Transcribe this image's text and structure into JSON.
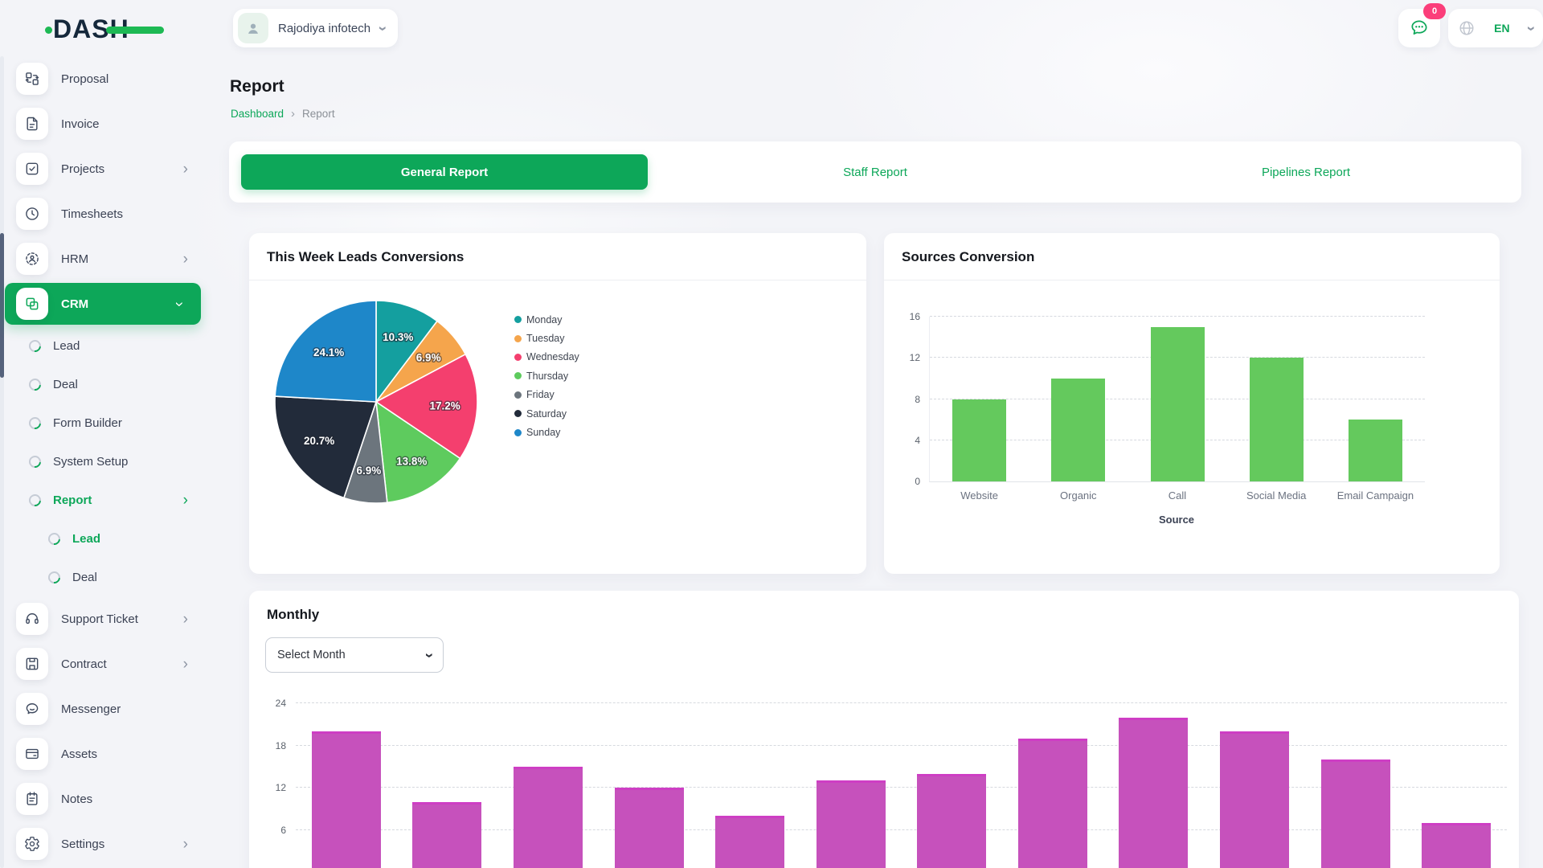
{
  "brand": {
    "name": "DASH"
  },
  "header": {
    "workspace": "Rajodiya infotech",
    "chat_badge": "0",
    "language": "EN"
  },
  "page": {
    "title": "Report",
    "breadcrumb": {
      "root": "Dashboard",
      "current": "Report"
    }
  },
  "tabs": [
    {
      "label": "General Report",
      "active": true
    },
    {
      "label": "Staff Report",
      "active": false
    },
    {
      "label": "Pipelines Report",
      "active": false
    }
  ],
  "sidebar": {
    "items": [
      {
        "label": "Proposal"
      },
      {
        "label": "Invoice"
      },
      {
        "label": "Projects",
        "expandable": true
      },
      {
        "label": "Timesheets"
      },
      {
        "label": "HRM",
        "expandable": true
      },
      {
        "label": "CRM",
        "active": true,
        "expanded": true
      },
      {
        "label": "Lead",
        "level": 1
      },
      {
        "label": "Deal",
        "level": 1
      },
      {
        "label": "Form Builder",
        "level": 1
      },
      {
        "label": "System Setup",
        "level": 1
      },
      {
        "label": "Report",
        "level": 1,
        "active": true,
        "expandable": true
      },
      {
        "label": "Lead",
        "level": 2,
        "active": true
      },
      {
        "label": "Deal",
        "level": 2
      },
      {
        "label": "Support Ticket",
        "expandable": true
      },
      {
        "label": "Contract",
        "expandable": true
      },
      {
        "label": "Messenger"
      },
      {
        "label": "Assets"
      },
      {
        "label": "Notes"
      },
      {
        "label": "Settings",
        "expandable": true
      }
    ]
  },
  "controls": {
    "select_month": "Select Month"
  },
  "colors": {
    "accent_green": "#0da759",
    "badge_pink": "#fb3e7a",
    "logo_navy": "#15283b",
    "logo_green": "#1db954"
  },
  "chart_data": [
    {
      "type": "pie",
      "title": "This Week Leads Conversions",
      "categories": [
        "Monday",
        "Tuesday",
        "Wednesday",
        "Thursday",
        "Friday",
        "Saturday",
        "Sunday"
      ],
      "values": [
        10.3,
        6.9,
        17.2,
        13.8,
        6.9,
        20.7,
        24.1
      ],
      "labels": [
        "10.3%",
        "6.9%",
        "17.2%",
        "13.8%",
        "6.9%",
        "20.7%",
        "24.1%"
      ],
      "colors": [
        "#149f9f",
        "#f5a54c",
        "#f43f6e",
        "#5ecb5e",
        "#6c757d",
        "#222b3a",
        "#1e87c9"
      ],
      "legend_position": "right"
    },
    {
      "type": "bar",
      "title": "Sources Conversion",
      "categories": [
        "Website",
        "Organic",
        "Call",
        "Social Media",
        "Email Campaign"
      ],
      "values": [
        8,
        10,
        15,
        12,
        6
      ],
      "xlabel": "Source",
      "ylim": [
        0,
        16
      ],
      "yticks": [
        0,
        4,
        8,
        12,
        16
      ],
      "color": "#64c95d",
      "grid": "dashed"
    },
    {
      "type": "bar",
      "title": "Monthly",
      "categories": [
        "",
        "",
        "",
        "",
        "",
        "",
        "",
        "",
        "",
        "",
        "",
        ""
      ],
      "values": [
        20,
        10,
        15,
        12,
        8,
        13,
        14,
        19,
        22,
        20,
        16,
        7
      ],
      "ylim": [
        0,
        24
      ],
      "yticks": [
        0,
        6,
        12,
        18,
        24
      ],
      "color": "#c651bc",
      "bar_border": "#ce3ec4",
      "grid": "dashed"
    }
  ]
}
